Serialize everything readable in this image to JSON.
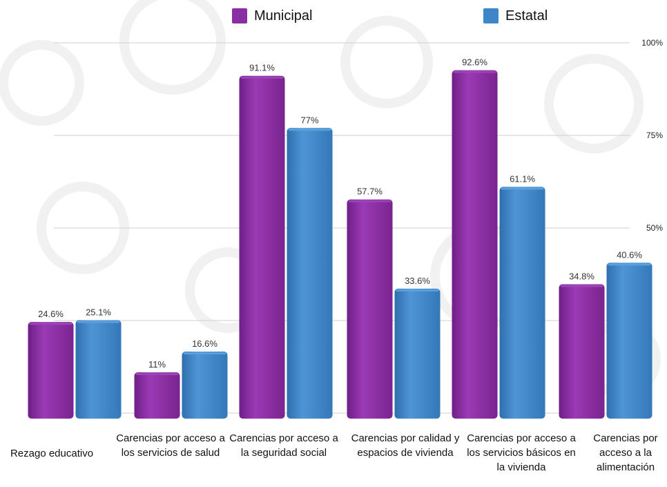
{
  "colors": {
    "municipal": "#8a2ea3",
    "estatal": "#3f86c9",
    "grid": "#cfcfcf"
  },
  "legend": [
    {
      "name": "Municipal",
      "color": "#8a2ea3"
    },
    {
      "name": "Estatal",
      "color": "#3f86c9"
    }
  ],
  "chart_data": {
    "type": "bar",
    "title": "",
    "xlabel": "",
    "ylabel": "",
    "ylim": [
      0,
      100
    ],
    "yticks": [
      "",
      "",
      "50%",
      "75%",
      "100%"
    ],
    "categories": [
      "Rezago educativo",
      "Carencias por acceso a los servicios de salud",
      "Carencias por acceso a la seguridad social",
      "Carencias por calidad y espacios de vivienda",
      "Carencias por acceso a los servicios básicos en la vivienda",
      "Carencias por acceso a la alimentación"
    ],
    "series": [
      {
        "name": "Municipal",
        "values": [
          24.6,
          11,
          91.1,
          57.7,
          92.6,
          34.8
        ],
        "labels": [
          "24.6%",
          "11%",
          "91.1%",
          "57.7%",
          "92.6%",
          "34.8%"
        ]
      },
      {
        "name": "Estatal",
        "values": [
          25.1,
          16.6,
          77,
          33.6,
          61.1,
          40.6
        ],
        "labels": [
          "25.1%",
          "16.6%",
          "77%",
          "33.6%",
          "61.1%",
          "40.6%"
        ]
      }
    ],
    "grid": true,
    "legend_position": "top"
  }
}
